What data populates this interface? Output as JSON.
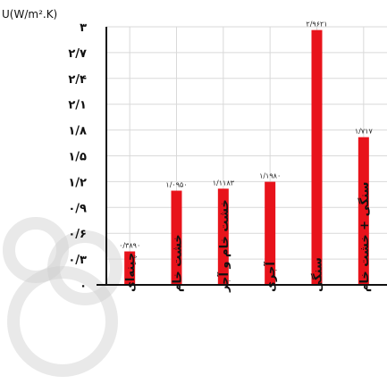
{
  "chart_data": {
    "type": "bar",
    "title": "",
    "ylabel": "U(W/m².K)",
    "xlabel": "",
    "ylim": [
      0,
      3
    ],
    "yticks": [
      0,
      0.3,
      0.6,
      0.9,
      1.2,
      1.5,
      1.8,
      2.1,
      2.4,
      2.7,
      3
    ],
    "ytick_labels": [
      "۰",
      "۰/۳",
      "۰/۶",
      "۰/۹",
      "۱/۲",
      "۱/۵",
      "۱/۸",
      "۲/۱",
      "۲/۴",
      "۲/۷",
      "۳"
    ],
    "categories": [
      "چینه‌ای",
      "خشت خام",
      "خشت خام و آجر",
      "آجری",
      "سنگی",
      "سنگی + خشت خام"
    ],
    "values": [
      0.389,
      1.095,
      1.1183,
      1.198,
      2.9621,
      1.717
    ],
    "data_labels": [
      "۰/۳۸۹۰",
      "۱/۰۹۵۰",
      "۱/۱۱۸۳",
      "۱/۱۹۸۰",
      "۲/۹۶۲۱",
      "۱/۷۱۷"
    ],
    "grid": true,
    "bar_color": "#e8131b",
    "legend": "none"
  }
}
